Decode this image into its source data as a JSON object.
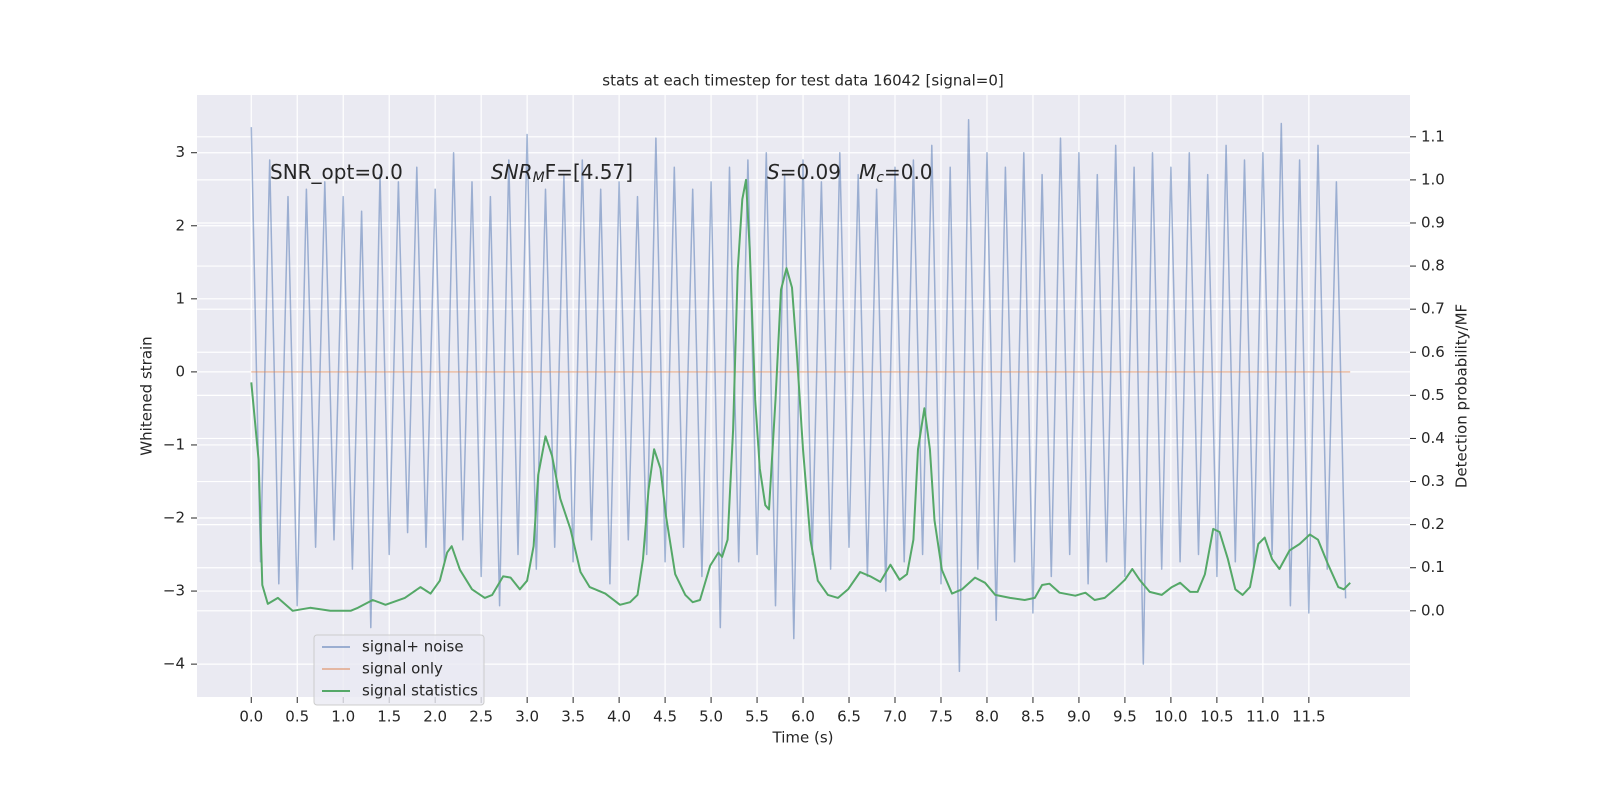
{
  "chart_data": {
    "type": "line",
    "title": "stats at each timestep for test data 16042 [signal=0]",
    "xlabel": "Time (s)",
    "ylabel": "Whitened strain",
    "y2label": "Detection probability/MF",
    "annotations": [
      [
        "SNR_opt=0.0"
      ],
      [
        "SNR",
        "M",
        "F=[4.57]"
      ],
      [
        "S",
        "=0.09"
      ],
      [
        "M",
        "c",
        "=0.0"
      ]
    ],
    "xlim": [
      -0.59,
      12.6
    ],
    "ylim": [
      -4.45,
      3.79
    ],
    "y2lim": [
      -0.2,
      1.197
    ],
    "grid": true,
    "legend": "lower left",
    "xticks": [
      {
        "value": 0,
        "label": "0.0"
      },
      {
        "value": 0.5,
        "label": "0.5"
      },
      {
        "value": 1,
        "label": "1.0"
      },
      {
        "value": 1.5,
        "label": "1.5"
      },
      {
        "value": 2,
        "label": "2.0"
      },
      {
        "value": 2.5,
        "label": "2.5"
      },
      {
        "value": 3,
        "label": "3.0"
      },
      {
        "value": 3.5,
        "label": "3.5"
      },
      {
        "value": 4,
        "label": "4.0"
      },
      {
        "value": 4.5,
        "label": "4.5"
      },
      {
        "value": 5,
        "label": "5.0"
      },
      {
        "value": 5.5,
        "label": "5.5"
      },
      {
        "value": 6,
        "label": "6.0"
      },
      {
        "value": 6.5,
        "label": "6.5"
      },
      {
        "value": 7,
        "label": "7.0"
      },
      {
        "value": 7.5,
        "label": "7.5"
      },
      {
        "value": 8,
        "label": "8.0"
      },
      {
        "value": 8.5,
        "label": "8.5"
      },
      {
        "value": 9,
        "label": "9.0"
      },
      {
        "value": 9.5,
        "label": "9.5"
      },
      {
        "value": 10,
        "label": "10.0"
      },
      {
        "value": 10.5,
        "label": "10.5"
      },
      {
        "value": 11,
        "label": "11.0"
      },
      {
        "value": 11.5,
        "label": "11.5"
      }
    ],
    "yticks": [
      {
        "value": -4,
        "label": "−4"
      },
      {
        "value": -3,
        "label": "−3"
      },
      {
        "value": -2,
        "label": "−2"
      },
      {
        "value": -1,
        "label": "−1"
      },
      0,
      1,
      2,
      3
    ],
    "y2ticks": [
      {
        "value": 0,
        "label": "0.0"
      },
      {
        "value": 0.1,
        "label": "0.1"
      },
      {
        "value": 0.2,
        "label": "0.2"
      },
      {
        "value": 0.3,
        "label": "0.3"
      },
      {
        "value": 0.4,
        "label": "0.4"
      },
      {
        "value": 0.5,
        "label": "0.5"
      },
      {
        "value": 0.6,
        "label": "0.6"
      },
      {
        "value": 0.7,
        "label": "0.7"
      },
      {
        "value": 0.8,
        "label": "0.8"
      },
      {
        "value": 0.9,
        "label": "0.9"
      },
      {
        "value": 1,
        "label": "1.0"
      },
      {
        "value": 1.1,
        "label": "1.1"
      }
    ],
    "series": [
      {
        "name": "signal+ noise",
        "color": "#4c72b0",
        "x": [
          0.0,
          0.1,
          0.2,
          0.3,
          0.4,
          0.5,
          0.6,
          0.7,
          0.8,
          0.9,
          1.0,
          1.1,
          1.2,
          1.3,
          1.4,
          1.5,
          1.6,
          1.7,
          1.8,
          1.9,
          2.0,
          2.1,
          2.2,
          2.3,
          2.4,
          2.5,
          2.6,
          2.7,
          2.8,
          2.9,
          3.0,
          3.1,
          3.2,
          3.3,
          3.4,
          3.5,
          3.6,
          3.7,
          3.8,
          3.9,
          4.0,
          4.1,
          4.2,
          4.3,
          4.4,
          4.5,
          4.6,
          4.7,
          4.8,
          4.9,
          5.0,
          5.1,
          5.2,
          5.3,
          5.4,
          5.5,
          5.6,
          5.7,
          5.8,
          5.9,
          6.0,
          6.1,
          6.2,
          6.3,
          6.4,
          6.5,
          6.6,
          6.7,
          6.8,
          6.9,
          7.0,
          7.1,
          7.2,
          7.3,
          7.4,
          7.5,
          7.6,
          7.7,
          7.8,
          7.9,
          8.0,
          8.1,
          8.2,
          8.3,
          8.4,
          8.5,
          8.6,
          8.7,
          8.8,
          8.9,
          9.0,
          9.1,
          9.2,
          9.3,
          9.4,
          9.5,
          9.6,
          9.7,
          9.8,
          9.9,
          10.0,
          10.1,
          10.2,
          10.3,
          10.4,
          10.5,
          10.6,
          10.7,
          10.8,
          10.9,
          11.0,
          11.1,
          11.2,
          11.3,
          11.4,
          11.5,
          11.6,
          11.7,
          11.8,
          11.9
        ],
        "values": [
          3.35,
          -2.6,
          2.9,
          -2.9,
          2.4,
          -3.2,
          2.5,
          -2.4,
          2.6,
          -2.3,
          2.4,
          -2.7,
          2.2,
          -3.5,
          2.7,
          -2.5,
          2.6,
          -2.2,
          2.8,
          -2.4,
          2.5,
          -2.6,
          3.0,
          -2.3,
          2.6,
          -2.8,
          2.4,
          -3.2,
          2.9,
          -2.5,
          3.25,
          -2.7,
          2.5,
          -2.4,
          2.7,
          -2.6,
          2.9,
          -2.3,
          2.5,
          -2.9,
          2.6,
          -2.3,
          2.4,
          -2.5,
          3.2,
          -2.6,
          2.8,
          -2.4,
          2.5,
          -2.8,
          2.6,
          -3.5,
          2.8,
          -2.6,
          2.9,
          -2.5,
          3.0,
          -3.2,
          2.7,
          -3.65,
          2.9,
          -2.5,
          2.6,
          -2.7,
          3.0,
          -2.4,
          2.7,
          -2.8,
          2.5,
          -3.0,
          2.8,
          -2.6,
          2.9,
          -2.5,
          3.1,
          -2.9,
          2.8,
          -4.1,
          3.45,
          -2.7,
          3.0,
          -3.4,
          2.8,
          -2.6,
          3.0,
          -3.3,
          2.7,
          -2.8,
          3.2,
          -2.5,
          3.0,
          -2.9,
          2.7,
          -2.6,
          3.1,
          -2.8,
          2.8,
          -4.0,
          3.0,
          -2.7,
          2.8,
          -2.6,
          3.0,
          -2.5,
          2.7,
          -2.8,
          3.1,
          -2.6,
          2.9,
          -2.7,
          3.0,
          -2.5,
          3.4,
          -3.2,
          2.9,
          -3.3,
          3.1,
          -2.7,
          2.6,
          -3.1
        ]
      },
      {
        "name": "signal only",
        "color": "#dd8452",
        "x": [
          0.0,
          11.95
        ],
        "values": [
          0,
          0
        ]
      },
      {
        "name": "signal statistics",
        "color": "#55a868",
        "axis": "y2",
        "x": [
          0.0,
          0.08,
          0.12,
          0.18,
          0.29,
          0.45,
          0.64,
          0.86,
          1.08,
          1.16,
          1.32,
          1.46,
          1.67,
          1.84,
          1.95,
          2.05,
          2.13,
          2.18,
          2.27,
          2.4,
          2.54,
          2.62,
          2.74,
          2.82,
          2.92,
          3.0,
          3.07,
          3.12,
          3.2,
          3.27,
          3.36,
          3.47,
          3.58,
          3.68,
          3.85,
          4.01,
          4.12,
          4.2,
          4.26,
          4.32,
          4.38,
          4.45,
          4.51,
          4.61,
          4.72,
          4.8,
          4.88,
          4.99,
          5.08,
          5.12,
          5.18,
          5.24,
          5.29,
          5.34,
          5.38,
          5.42,
          5.48,
          5.53,
          5.59,
          5.63,
          5.7,
          5.76,
          5.82,
          5.88,
          5.93,
          6.0,
          6.08,
          6.16,
          6.27,
          6.38,
          6.49,
          6.62,
          6.73,
          6.84,
          6.95,
          7.05,
          7.13,
          7.2,
          7.25,
          7.32,
          7.38,
          7.43,
          7.51,
          7.62,
          7.73,
          7.87,
          7.98,
          8.09,
          8.25,
          8.41,
          8.52,
          8.6,
          8.68,
          8.79,
          8.96,
          9.07,
          9.17,
          9.28,
          9.39,
          9.5,
          9.58,
          9.66,
          9.77,
          9.9,
          10.01,
          10.1,
          10.21,
          10.29,
          10.37,
          10.46,
          10.53,
          10.62,
          10.7,
          10.78,
          10.86,
          10.95,
          11.02,
          11.1,
          11.18,
          11.29,
          11.4,
          11.51,
          11.6,
          11.71,
          11.82,
          11.88,
          11.95
        ],
        "values": [
          0.53,
          0.35,
          0.06,
          0.016,
          0.03,
          0.0,
          0.007,
          0.0,
          0.0,
          0.007,
          0.025,
          0.014,
          0.03,
          0.055,
          0.04,
          0.07,
          0.135,
          0.15,
          0.095,
          0.05,
          0.03,
          0.037,
          0.08,
          0.077,
          0.05,
          0.07,
          0.15,
          0.315,
          0.405,
          0.36,
          0.26,
          0.19,
          0.09,
          0.055,
          0.04,
          0.014,
          0.02,
          0.037,
          0.12,
          0.28,
          0.375,
          0.33,
          0.22,
          0.085,
          0.037,
          0.02,
          0.025,
          0.105,
          0.135,
          0.125,
          0.165,
          0.42,
          0.79,
          0.955,
          1.0,
          0.84,
          0.49,
          0.33,
          0.245,
          0.235,
          0.49,
          0.745,
          0.795,
          0.75,
          0.605,
          0.375,
          0.165,
          0.07,
          0.037,
          0.03,
          0.05,
          0.09,
          0.08,
          0.067,
          0.107,
          0.072,
          0.085,
          0.165,
          0.375,
          0.47,
          0.375,
          0.21,
          0.095,
          0.04,
          0.05,
          0.077,
          0.065,
          0.037,
          0.03,
          0.025,
          0.03,
          0.06,
          0.063,
          0.042,
          0.035,
          0.042,
          0.025,
          0.03,
          0.05,
          0.072,
          0.097,
          0.072,
          0.044,
          0.037,
          0.055,
          0.065,
          0.044,
          0.044,
          0.085,
          0.19,
          0.183,
          0.12,
          0.05,
          0.037,
          0.055,
          0.155,
          0.17,
          0.12,
          0.097,
          0.14,
          0.155,
          0.177,
          0.165,
          0.107,
          0.055,
          0.05,
          0.065
        ]
      }
    ]
  }
}
